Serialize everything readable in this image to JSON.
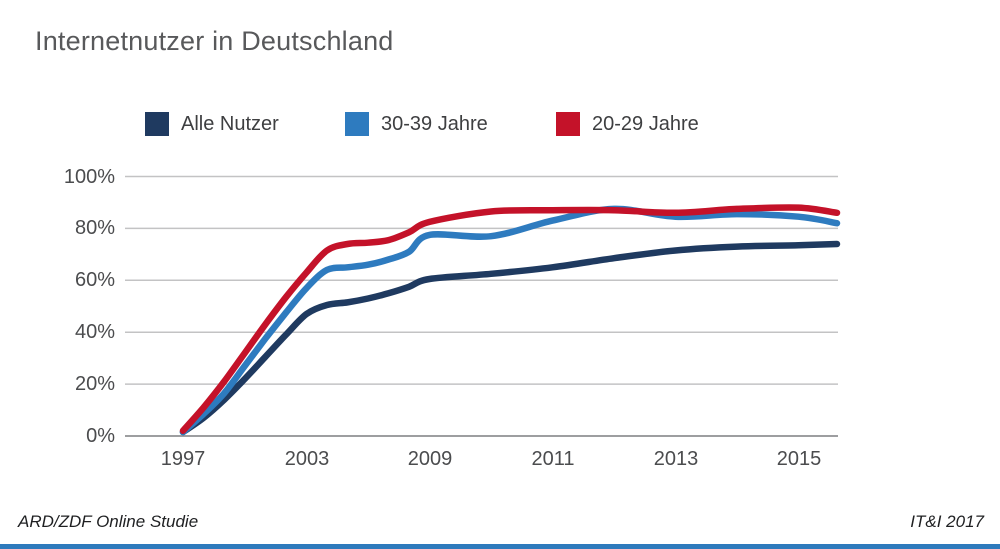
{
  "title": "Internetnutzer in Deutschland",
  "footer": {
    "left": "ARD/ZDF Online Studie",
    "right": "IT&I 2017"
  },
  "accent_colors": {
    "bottom_bar": "#2e7abc",
    "gridline": "#c3c3c4",
    "axis_line": "#9d9ea0"
  },
  "chart_data": {
    "type": "line",
    "title": "Internetnutzer in Deutschland",
    "xlabel": "",
    "ylabel": "",
    "ylim": [
      0,
      100
    ],
    "grid": true,
    "legend_position": "top",
    "x": [
      1997,
      1998,
      1999,
      2000,
      2001,
      2002,
      2003,
      2004,
      2005,
      2006,
      2007,
      2008,
      2009,
      2010,
      2011,
      2012,
      2013,
      2014,
      2015,
      2016
    ],
    "x_tick_years": [
      1997,
      2003,
      2009,
      2011,
      2013,
      2015
    ],
    "x_tick_labels": [
      "1997",
      "2003",
      "2009",
      "2011",
      "2013",
      "2015"
    ],
    "x_axis_note": "labeled ticks are equally spaced although year gaps differ (non-linear axis)",
    "y_tick_values": [
      0,
      20,
      40,
      60,
      80,
      100
    ],
    "y_tick_labels": [
      "0%",
      "20%",
      "40%",
      "60%",
      "80%",
      "100%"
    ],
    "series": [
      {
        "name": "Alle Nutzer",
        "color": "#1f3a60",
        "values": [
          1.5,
          7,
          14,
          22,
          30.5,
          39,
          47,
          50.5,
          51.5,
          53,
          55,
          57.5,
          60.5,
          62.5,
          65,
          68.5,
          71.5,
          73,
          73.5,
          74
        ]
      },
      {
        "name": "30-39 Jahre",
        "color": "#2e7bbf",
        "values": [
          1.5,
          8.5,
          16.5,
          27,
          37.5,
          47.5,
          57,
          64,
          65,
          66,
          68,
          71,
          77.5,
          77,
          83,
          87.5,
          84.5,
          85.5,
          84.5,
          82
        ]
      },
      {
        "name": "20-29 Jahre",
        "color": "#c41229",
        "values": [
          2,
          11,
          21,
          32,
          43,
          53.5,
          63,
          71.5,
          74,
          74.5,
          75.5,
          78.5,
          82.5,
          86.5,
          87,
          87,
          86,
          87.5,
          88,
          86
        ]
      }
    ]
  }
}
